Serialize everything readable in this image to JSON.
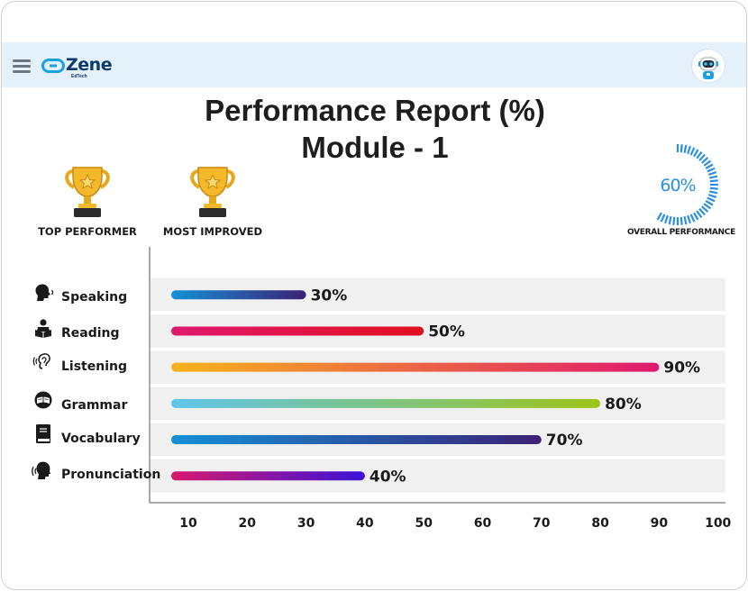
{
  "app": {
    "logo_text": "Zene",
    "logo_sub": "EdTech"
  },
  "header": {
    "menu_icon": "hamburger-menu-icon",
    "avatar_icon": "robot-avatar-icon"
  },
  "report": {
    "title": "Performance Report (%)",
    "subtitle": "Module - 1"
  },
  "awards": [
    {
      "label": "TOP PERFORMER",
      "icon": "trophy-icon"
    },
    {
      "label": "MOST IMPROVED",
      "icon": "trophy-icon"
    }
  ],
  "overall": {
    "value": 60,
    "value_text": "60%",
    "label": "OVERALL PERFORMANCE",
    "color": "#2b8fe0"
  },
  "chart_data": {
    "type": "bar",
    "orientation": "horizontal",
    "categories": [
      "Speaking",
      "Reading",
      "Listening",
      "Grammar",
      "Vocabulary",
      "Pronunciation"
    ],
    "values": [
      30,
      50,
      90,
      80,
      70,
      40
    ],
    "value_labels": [
      "30%",
      "50%",
      "90%",
      "80%",
      "70%",
      "40%"
    ],
    "category_icons": [
      "speaking-head-icon",
      "reading-person-icon",
      "listening-ear-icon",
      "grammar-book-icon",
      "vocabulary-book-icon",
      "pronunciation-head-icon"
    ],
    "gradients": [
      [
        "#1590d6",
        "#3a2275"
      ],
      [
        "#e0186e",
        "#e0101e"
      ],
      [
        "#f6b31b",
        "#e0186e"
      ],
      [
        "#5fc5ea",
        "#9dc31a"
      ],
      [
        "#1590d6",
        "#3a2275"
      ],
      [
        "#d8196e",
        "#3b12d6"
      ]
    ],
    "xticks": [
      "10",
      "20",
      "30",
      "40",
      "50",
      "60",
      "70",
      "80",
      "90",
      "100"
    ],
    "xlim": [
      5,
      100
    ],
    "title": "Performance Report (%)",
    "subtitle": "Module - 1",
    "xlabel": "",
    "ylabel": "",
    "grid": false
  }
}
